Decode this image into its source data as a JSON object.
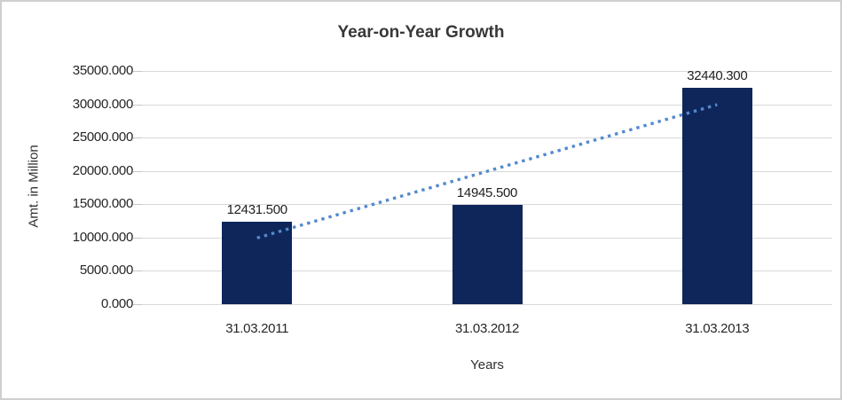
{
  "chart_data": {
    "type": "bar",
    "title": "Year-on-Year Growth",
    "xlabel": "Years",
    "ylabel": "Amt. in Million",
    "categories": [
      "31.03.2011",
      "31.03.2012",
      "31.03.2013"
    ],
    "values": [
      12431.5,
      14945.5,
      32440.3
    ],
    "data_labels": [
      "12431.500",
      "14945.500",
      "32440.300"
    ],
    "ylim": [
      0,
      35000
    ],
    "y_tick_values": [
      35000,
      30000,
      25000,
      20000,
      15000,
      10000,
      5000,
      0
    ],
    "y_tick_labels": [
      "35000.000",
      "30000.000",
      "25000.000",
      "20000.000",
      "15000.000",
      "10000.000",
      "5000.000",
      "0.000"
    ],
    "grid": true,
    "legend": "none",
    "bar_color": "#0e265a",
    "gridline_color": "#d9d9d9",
    "trendline": {
      "style": "dotted",
      "color": "#5389cd",
      "start_value": 9935,
      "end_value": 29944
    }
  }
}
